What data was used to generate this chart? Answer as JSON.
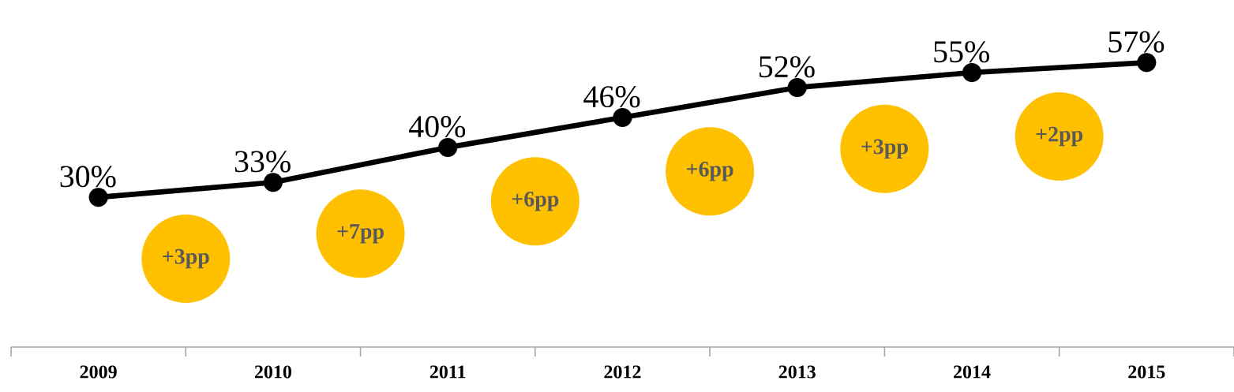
{
  "chart_data": {
    "type": "line",
    "categories": [
      "2009",
      "2010",
      "2011",
      "2012",
      "2013",
      "2014",
      "2015"
    ],
    "values": [
      30,
      33,
      40,
      46,
      52,
      55,
      57
    ],
    "value_labels": [
      "30%",
      "33%",
      "40%",
      "46%",
      "52%",
      "55%",
      "57%"
    ],
    "color": "#000000",
    "marker": "circle",
    "line_style": "solid",
    "annotations": [
      "+3pp",
      "+7pp",
      "+6pp",
      "+6pp",
      "+3pp",
      "+2pp"
    ]
  }
}
